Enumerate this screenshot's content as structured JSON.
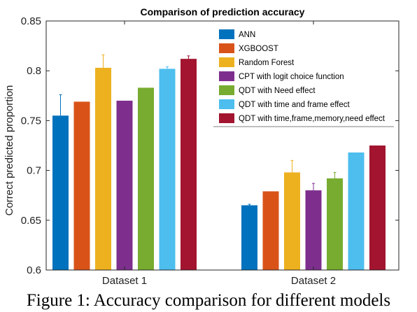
{
  "chart_data": {
    "type": "bar",
    "title": "Comparison of prediction accuracy",
    "xlabel": "",
    "ylabel": "Correct predicted proportion",
    "ylim": [
      0.6,
      0.85
    ],
    "yticks": [
      "0.6",
      "0.65",
      "0.7",
      "0.75",
      "0.8",
      "0.85"
    ],
    "categories": [
      "Dataset 1",
      "Dataset 2"
    ],
    "legend_position": "top-right",
    "grid": false,
    "series": [
      {
        "name": "ANN",
        "color": "#0072BD",
        "values": [
          0.755,
          0.665
        ],
        "error": [
          0.021,
          0.001
        ]
      },
      {
        "name": "XGBOOST",
        "color": "#D95319",
        "values": [
          0.769,
          0.679
        ],
        "error": [
          0,
          0
        ]
      },
      {
        "name": "Random Forest",
        "color": "#EDB120",
        "values": [
          0.803,
          0.698
        ],
        "error": [
          0.013,
          0.012
        ]
      },
      {
        "name": "CPT with logit choice function",
        "color": "#7E2F8E",
        "values": [
          0.77,
          0.68
        ],
        "error": [
          0,
          0.007
        ]
      },
      {
        "name": "QDT with Need effect",
        "color": "#77AC30",
        "values": [
          0.783,
          0.692
        ],
        "error": [
          0,
          0.006
        ]
      },
      {
        "name": "QDT with time and frame effect",
        "color": "#4DBEEE",
        "values": [
          0.802,
          0.718
        ],
        "error": [
          0.002,
          0
        ]
      },
      {
        "name": "QDT with time,frame,memory,need effect",
        "color": "#A2142F",
        "values": [
          0.812,
          0.725
        ],
        "error": [
          0.003,
          0
        ]
      }
    ]
  },
  "caption": "Figure 1: Accuracy comparison for different models"
}
